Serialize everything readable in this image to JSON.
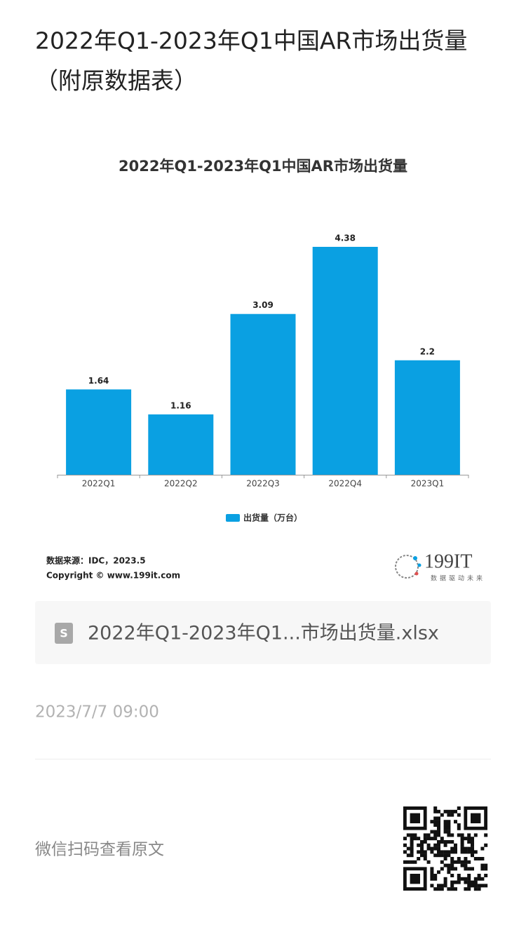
{
  "article_title_line1": "2022年Q1-2023年Q1中国AR市场出货量",
  "article_title_line2": "（附原数据表）",
  "chart_data": {
    "type": "bar",
    "title": "2022年Q1-2023年Q1中国AR市场出货量",
    "categories": [
      "2022Q1",
      "2022Q2",
      "2022Q3",
      "2022Q4",
      "2023Q1"
    ],
    "series": [
      {
        "name": "出货量（万台）",
        "color": "#0aa0e2",
        "values": [
          1.64,
          1.16,
          3.09,
          4.38,
          2.2
        ]
      }
    ]
  },
  "source": "数据来源：IDC，2023.5",
  "copyright": "Copyright © www.199it.com",
  "logo": "199IT",
  "logo_tagline": "数据驱动未来",
  "attachment": "2022年Q1-2023年Q1...市场出货量.xlsx",
  "date": "2023/7/7 09:00",
  "qr_caption": "微信扫码查看原文"
}
